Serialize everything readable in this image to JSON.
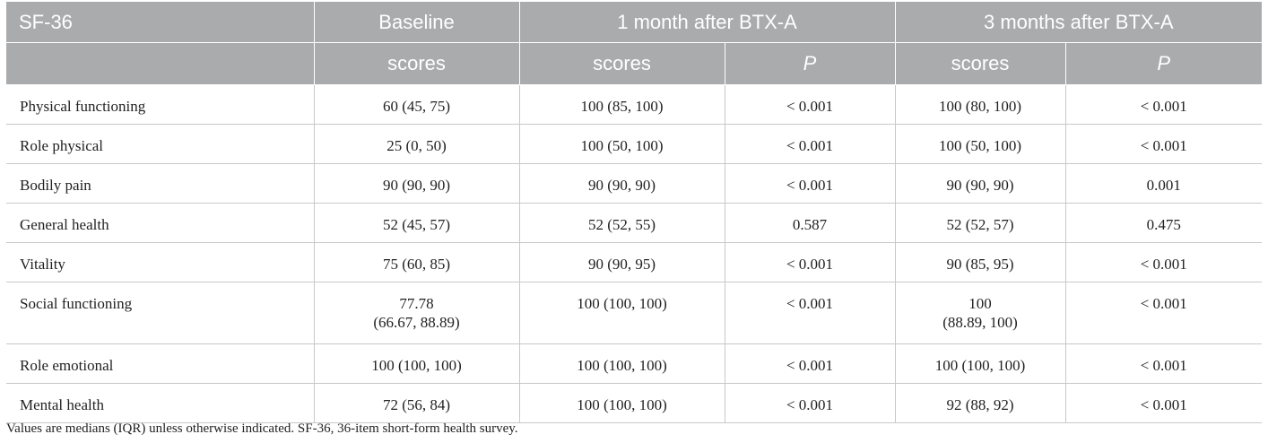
{
  "header": {
    "row1": [
      "SF-36",
      "Baseline",
      "1 month after BTX-A",
      "3 months after BTX-A"
    ],
    "row2": [
      "",
      "scores",
      "scores",
      "P",
      "scores",
      "P"
    ]
  },
  "rows": [
    {
      "label": "Physical functioning",
      "baseline": "60 (45, 75)",
      "m1_scores": "100 (85, 100)",
      "m1_p": "< 0.001",
      "m3_scores": "100 (80, 100)",
      "m3_p": "< 0.001"
    },
    {
      "label": "Role physical",
      "baseline": "25 (0, 50)",
      "m1_scores": "100 (50, 100)",
      "m1_p": "< 0.001",
      "m3_scores": "100 (50, 100)",
      "m3_p": "< 0.001"
    },
    {
      "label": "Bodily pain",
      "baseline": "90 (90, 90)",
      "m1_scores": "90 (90, 90)",
      "m1_p": "< 0.001",
      "m3_scores": "90 (90, 90)",
      "m3_p": "0.001"
    },
    {
      "label": "General health",
      "baseline": "52 (45, 57)",
      "m1_scores": "52 (52, 55)",
      "m1_p": "0.587",
      "m3_scores": "52 (52, 57)",
      "m3_p": "0.475"
    },
    {
      "label": "Vitality",
      "baseline": "75 (60, 85)",
      "m1_scores": "90 (90, 95)",
      "m1_p": "< 0.001",
      "m3_scores": "90 (85, 95)",
      "m3_p": "< 0.001"
    },
    {
      "label": "Social functioning",
      "baseline": "77.78",
      "baseline_2": "(66.67, 88.89)",
      "m1_scores": "100 (100, 100)",
      "m1_p": "< 0.001",
      "m3_scores": "100",
      "m3_scores_2": "(88.89, 100)",
      "m3_p": "< 0.001"
    },
    {
      "label": "Role emotional",
      "baseline": "100 (100, 100)",
      "m1_scores": "100 (100, 100)",
      "m1_p": "< 0.001",
      "m3_scores": "100 (100, 100)",
      "m3_p": "< 0.001"
    },
    {
      "label": "Mental health",
      "baseline": "72 (56, 84)",
      "m1_scores": "100 (100, 100)",
      "m1_p": "< 0.001",
      "m3_scores": "92 (88, 92)",
      "m3_p": "< 0.001"
    }
  ],
  "footnote": "Values are medians (IQR) unless otherwise indicated. SF-36, 36-item short-form health survey."
}
